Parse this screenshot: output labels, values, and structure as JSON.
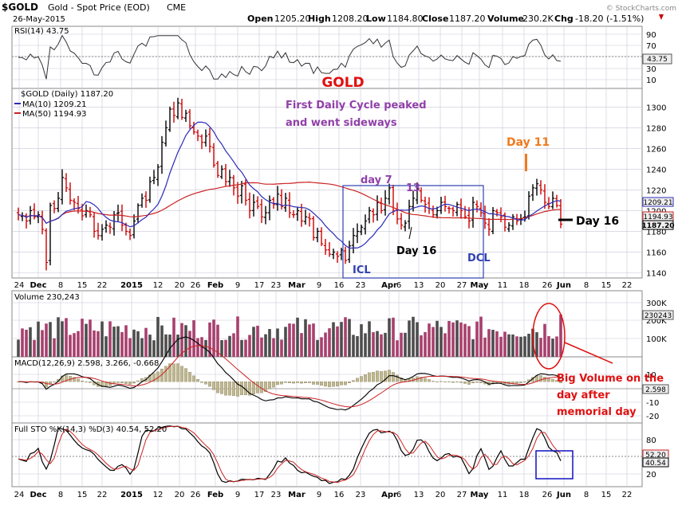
{
  "header": {
    "symbol": "$GOLD",
    "name": "Gold - Spot Price (EOD)",
    "exchange": "CME",
    "date": "26-May-2015",
    "open_label": "Open",
    "open": "1205.20",
    "high_label": "High",
    "high": "1208.20",
    "low_label": "Low",
    "low": "1184.80",
    "close_label": "Close",
    "close": "1187.20",
    "volume_label": "Volume",
    "volume": "230.2K",
    "chg_label": "Chg",
    "chg": "-18.20 (-1.51%)",
    "chg_icon": "down-arrow-icon",
    "watermark": "© StockCharts.com"
  },
  "colors": {
    "up_bar": "#000000",
    "down_bar": "#cc0000",
    "ma10": "#2b2bb8",
    "ma50": "#cc2222",
    "vol_up": "#4d4d4d",
    "vol_down": "#a8406e",
    "annot_orange": "#f07a1e",
    "annot_purple": "#9040a8",
    "annot_red": "#e01010",
    "annot_blue": "#3040b0"
  },
  "panels": {
    "rsi": {
      "label": "RSI(14) 43.75",
      "current": "43.75",
      "ticks": [
        "90",
        "70",
        "50",
        "30",
        "10"
      ]
    },
    "price": {
      "legend_title": "$GOLD (Daily) 1187.20",
      "legend_ma10": "MA(10) 1209.21",
      "legend_ma50": "MA(50) 1194.93",
      "ticks": [
        "1300",
        "1280",
        "1260",
        "1240",
        "1220",
        "1200",
        "1180",
        "1160",
        "1140"
      ],
      "tags": [
        "1209.21",
        "1194.93",
        "1187.20"
      ]
    },
    "volume": {
      "label": "Volume 230,243",
      "ticks": [
        "300K",
        "200K",
        "100K"
      ],
      "tag": "230243"
    },
    "macd": {
      "label": "MACD(12,26,9) 2.598, 3.266, -0.668",
      "ticks": [
        "10",
        "-10",
        "-20"
      ],
      "tag": "2.598"
    },
    "sto": {
      "label": "Full STO %K(14,3) %D(3) 40.54, 52.20",
      "ticks": [
        "80",
        "20"
      ],
      "tags": [
        "52.20",
        "40.54"
      ]
    }
  },
  "x_axis": {
    "labels": [
      "24",
      "Dec",
      "8",
      "15",
      "22",
      "2015",
      "12",
      "20",
      "26",
      "Feb",
      "9",
      "17",
      "23",
      "Mar",
      "9",
      "16",
      "23",
      "Apr",
      "6",
      "13",
      "20",
      "27",
      "May",
      "11",
      "18",
      "26",
      "Jun",
      "8",
      "15",
      "22"
    ]
  },
  "annotations": {
    "title": "GOLD",
    "cycle_note_1": "First Daily Cycle peaked",
    "cycle_note_2": "and went sideways",
    "day7": "day 7",
    "day13": "13",
    "day16_mid": "Day 16",
    "icl": "ICL",
    "dcl": "DCL",
    "day11": "Day 11",
    "day16_right": "Day 16",
    "vol_note_1": "Big Volume on the",
    "vol_note_2": "day after",
    "vol_note_3": "memorial day"
  },
  "chart_data": {
    "type": "ohlc",
    "title": "$GOLD Gold - Spot Price (EOD) CME",
    "date": "26-May-2015",
    "price": {
      "close_approx": [
        1196,
        1195,
        1190,
        1200,
        1194,
        1196,
        1182,
        1150,
        1205,
        1202,
        1212,
        1232,
        1222,
        1210,
        1208,
        1202,
        1195,
        1200,
        1196,
        1180,
        1176,
        1182,
        1186,
        1184,
        1196,
        1198,
        1186,
        1180,
        1176,
        1190,
        1205,
        1212,
        1210,
        1228,
        1232,
        1242,
        1266,
        1280,
        1298,
        1292,
        1304,
        1290,
        1294,
        1282,
        1276,
        1272,
        1266,
        1272,
        1262,
        1244,
        1234,
        1240,
        1228,
        1232,
        1222,
        1214,
        1224,
        1210,
        1200,
        1208,
        1204,
        1194,
        1198,
        1210,
        1206,
        1216,
        1204,
        1212,
        1198,
        1196,
        1200,
        1190,
        1194,
        1192,
        1174,
        1180,
        1168,
        1162,
        1158,
        1160,
        1156,
        1162,
        1152,
        1166,
        1176,
        1180,
        1184,
        1190,
        1200,
        1196,
        1208,
        1200,
        1212,
        1222,
        1200,
        1192,
        1186,
        1188,
        1204,
        1212,
        1220,
        1210,
        1206,
        1202,
        1196,
        1200,
        1208,
        1204,
        1202,
        1200,
        1206,
        1200,
        1194,
        1190,
        1208,
        1204,
        1198,
        1188,
        1182,
        1200,
        1198,
        1194,
        1184,
        1186,
        1194,
        1190,
        1192,
        1194,
        1214,
        1222,
        1226,
        1220,
        1208,
        1204,
        1212,
        1205,
        1187
      ],
      "ylim": [
        1135,
        1318
      ],
      "last_close": 1187.2,
      "ma10": 1209.21,
      "ma50": 1194.93
    },
    "rsi": {
      "last": 43.75,
      "ylim": [
        0,
        100
      ]
    },
    "volume": {
      "last": 230243,
      "ylim": [
        0,
        360000
      ]
    },
    "macd": {
      "macd": 2.598,
      "signal": 3.266,
      "histogram": -0.668,
      "ylim": [
        -25,
        15
      ]
    },
    "stochastic": {
      "k": 40.54,
      "d": 52.2,
      "ylim": [
        0,
        100
      ]
    }
  }
}
